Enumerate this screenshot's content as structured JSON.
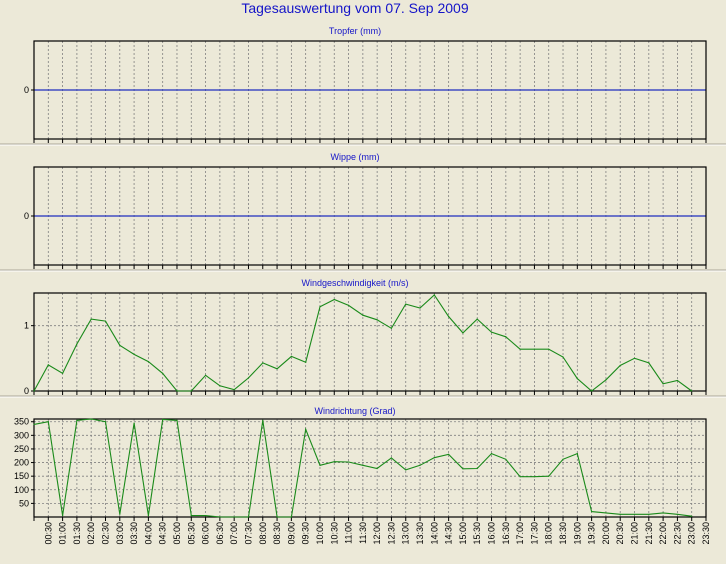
{
  "title": "Tagesauswertung vom 07. Sep 2009",
  "colors": {
    "background": "#ece9d8",
    "title": "#1515c8",
    "zero_line": "#1f2fbf",
    "series": "#1a8a1a",
    "grid": "#808080"
  },
  "x_labels": [
    "00:30",
    "01:00",
    "01:30",
    "02:00",
    "02:30",
    "03:00",
    "03:30",
    "04:00",
    "04:30",
    "05:00",
    "05:30",
    "06:00",
    "06:30",
    "07:00",
    "07:30",
    "08:00",
    "08:30",
    "09:00",
    "09:30",
    "10:00",
    "10:30",
    "11:00",
    "11:30",
    "12:00",
    "12:30",
    "13:00",
    "13:30",
    "14:00",
    "14:30",
    "15:00",
    "15:30",
    "16:00",
    "16:30",
    "17:00",
    "17:30",
    "18:00",
    "18:30",
    "19:00",
    "19:30",
    "20:00",
    "20:30",
    "21:00",
    "21:30",
    "22:00",
    "22:30",
    "23:00",
    "23:30"
  ],
  "chart_data": [
    {
      "type": "line",
      "title": "Tropfer (mm)",
      "yticks": [
        "0"
      ],
      "ylim": [
        -1,
        1
      ],
      "zero_line": true,
      "values": []
    },
    {
      "type": "line",
      "title": "Wippe (mm)",
      "yticks": [
        "0"
      ],
      "ylim": [
        -1,
        1
      ],
      "zero_line": true,
      "values": []
    },
    {
      "type": "line",
      "title": "Windgeschwindigkeit (m/s)",
      "yticks": [
        "0",
        "1"
      ],
      "ylim": [
        0,
        1.5
      ],
      "zero_line": false,
      "x": [
        "00:00",
        "00:30",
        "01:00",
        "01:30",
        "02:00",
        "02:30",
        "03:00",
        "03:30",
        "04:00",
        "04:30",
        "05:00",
        "05:30",
        "06:00",
        "06:30",
        "07:00",
        "07:30",
        "08:00",
        "08:30",
        "09:00",
        "09:30",
        "10:00",
        "10:30",
        "11:00",
        "11:30",
        "12:00",
        "12:30",
        "13:00",
        "13:30",
        "14:00",
        "14:30",
        "15:00",
        "15:30",
        "16:00",
        "16:30",
        "17:00",
        "17:30",
        "18:00",
        "18:30",
        "19:00",
        "19:30",
        "20:00",
        "20:30",
        "21:00",
        "21:30",
        "22:00",
        "22:30",
        "23:00"
      ],
      "values": [
        0.0,
        0.4,
        0.27,
        0.72,
        1.1,
        1.07,
        0.7,
        0.56,
        0.45,
        0.27,
        0.0,
        0.0,
        0.24,
        0.08,
        0.02,
        0.2,
        0.43,
        0.34,
        0.53,
        0.44,
        1.29,
        1.4,
        1.31,
        1.16,
        1.09,
        0.96,
        1.33,
        1.27,
        1.47,
        1.14,
        0.89,
        1.1,
        0.9,
        0.83,
        0.64,
        0.64,
        0.64,
        0.52,
        0.19,
        0.0,
        0.17,
        0.39,
        0.5,
        0.43,
        0.11,
        0.16,
        0.0
      ]
    },
    {
      "type": "line",
      "title": "Windrichtung (Grad)",
      "yticks": [
        "50",
        "100",
        "150",
        "200",
        "250",
        "300",
        "350"
      ],
      "ylim": [
        0,
        360
      ],
      "zero_line": false,
      "x": [
        "00:00",
        "00:30",
        "01:00",
        "01:30",
        "02:00",
        "02:30",
        "03:00",
        "03:30",
        "04:00",
        "04:30",
        "05:00",
        "05:30",
        "06:00",
        "06:30",
        "07:00",
        "07:30",
        "08:00",
        "08:30",
        "09:00",
        "09:30",
        "10:00",
        "10:30",
        "11:00",
        "11:30",
        "12:00",
        "12:30",
        "13:00",
        "13:30",
        "14:00",
        "14:30",
        "15:00",
        "15:30",
        "16:00",
        "16:30",
        "17:00",
        "17:30",
        "18:00",
        "18:30",
        "19:00",
        "19:30",
        "20:00",
        "20:30",
        "21:00",
        "21:30",
        "22:00",
        "22:30",
        "23:00"
      ],
      "values": [
        340,
        350,
        5,
        355,
        360,
        350,
        10,
        345,
        5,
        358,
        355,
        5,
        5,
        0,
        0,
        0,
        355,
        0,
        0,
        322,
        190,
        203,
        202,
        190,
        178,
        217,
        173,
        190,
        218,
        230,
        177,
        178,
        233,
        212,
        148,
        148,
        150,
        212,
        233,
        20,
        15,
        10,
        10,
        10,
        15,
        10,
        3
      ]
    }
  ]
}
